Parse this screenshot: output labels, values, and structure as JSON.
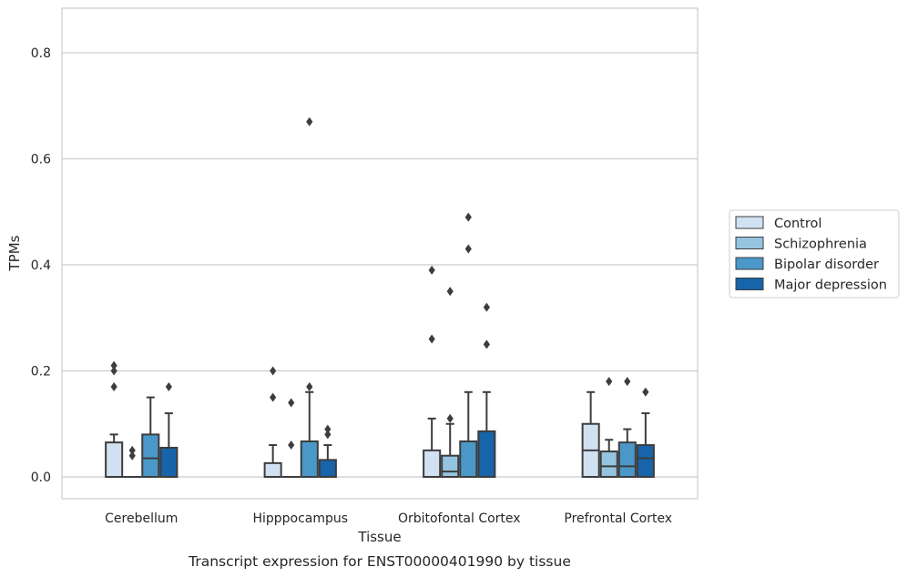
{
  "chart_data": {
    "type": "box",
    "title": "",
    "caption": "Transcript expression for ENST00000401990 by tissue",
    "xlabel": "Tissue",
    "ylabel": "TPMs",
    "ylim": [
      -0.04,
      0.885
    ],
    "yticks": [
      0.0,
      0.2,
      0.4,
      0.6,
      0.8
    ],
    "ytick_labels": [
      "0.0",
      "0.2",
      "0.4",
      "0.6",
      "0.8"
    ],
    "grid": "horizontal",
    "legend_position": "right",
    "categories": [
      "Cerebellum",
      "Hipppocampus",
      "Orbitofontal Cortex",
      "Prefrontal Cortex"
    ],
    "series": [
      {
        "name": "Control",
        "color": "#d0e1f2",
        "boxes": [
          {
            "q1": 0.0,
            "median": 0.0,
            "q3": 0.065,
            "whisker_low": 0.0,
            "whisker_high": 0.08,
            "outliers": [
              0.17,
              0.2,
              0.21
            ]
          },
          {
            "q1": 0.0,
            "median": 0.0,
            "q3": 0.026,
            "whisker_low": 0.0,
            "whisker_high": 0.06,
            "outliers": [
              0.15,
              0.2
            ]
          },
          {
            "q1": 0.0,
            "median": 0.0,
            "q3": 0.05,
            "whisker_low": 0.0,
            "whisker_high": 0.11,
            "outliers": [
              0.26,
              0.39
            ]
          },
          {
            "q1": 0.0,
            "median": 0.05,
            "q3": 0.1,
            "whisker_low": 0.0,
            "whisker_high": 0.16,
            "outliers": []
          }
        ]
      },
      {
        "name": "Schizophrenia",
        "color": "#94c4df",
        "boxes": [
          {
            "q1": 0.0,
            "median": 0.0,
            "q3": 0.0,
            "whisker_low": 0.0,
            "whisker_high": 0.0,
            "outliers": [
              0.04,
              0.05
            ]
          },
          {
            "q1": 0.0,
            "median": 0.0,
            "q3": 0.0,
            "whisker_low": 0.0,
            "whisker_high": 0.0,
            "outliers": [
              0.06,
              0.14
            ]
          },
          {
            "q1": 0.0,
            "median": 0.01,
            "q3": 0.04,
            "whisker_low": 0.0,
            "whisker_high": 0.1,
            "outliers": [
              0.11,
              0.35
            ]
          },
          {
            "q1": 0.0,
            "median": 0.02,
            "q3": 0.048,
            "whisker_low": 0.0,
            "whisker_high": 0.07,
            "outliers": [
              0.18
            ]
          }
        ]
      },
      {
        "name": "Bipolar disorder",
        "color": "#4a98c9",
        "boxes": [
          {
            "q1": 0.0,
            "median": 0.035,
            "q3": 0.08,
            "whisker_low": 0.0,
            "whisker_high": 0.15,
            "outliers": []
          },
          {
            "q1": 0.0,
            "median": 0.0,
            "q3": 0.067,
            "whisker_low": 0.0,
            "whisker_high": 0.16,
            "outliers": [
              0.17,
              0.67
            ]
          },
          {
            "q1": 0.0,
            "median": 0.0,
            "q3": 0.067,
            "whisker_low": 0.0,
            "whisker_high": 0.16,
            "outliers": [
              0.43,
              0.49
            ]
          },
          {
            "q1": 0.0,
            "median": 0.02,
            "q3": 0.065,
            "whisker_low": 0.0,
            "whisker_high": 0.09,
            "outliers": [
              0.18
            ]
          }
        ]
      },
      {
        "name": "Major depression",
        "color": "#1764ab",
        "boxes": [
          {
            "q1": 0.0,
            "median": 0.0,
            "q3": 0.055,
            "whisker_low": 0.0,
            "whisker_high": 0.12,
            "outliers": [
              0.17
            ]
          },
          {
            "q1": 0.0,
            "median": 0.0,
            "q3": 0.032,
            "whisker_low": 0.0,
            "whisker_high": 0.06,
            "outliers": [
              0.08,
              0.09
            ]
          },
          {
            "q1": 0.0,
            "median": 0.0,
            "q3": 0.086,
            "whisker_low": 0.0,
            "whisker_high": 0.16,
            "outliers": [
              0.25,
              0.32
            ]
          },
          {
            "q1": 0.0,
            "median": 0.035,
            "q3": 0.06,
            "whisker_low": 0.0,
            "whisker_high": 0.12,
            "outliers": [
              0.16
            ]
          }
        ]
      }
    ]
  }
}
